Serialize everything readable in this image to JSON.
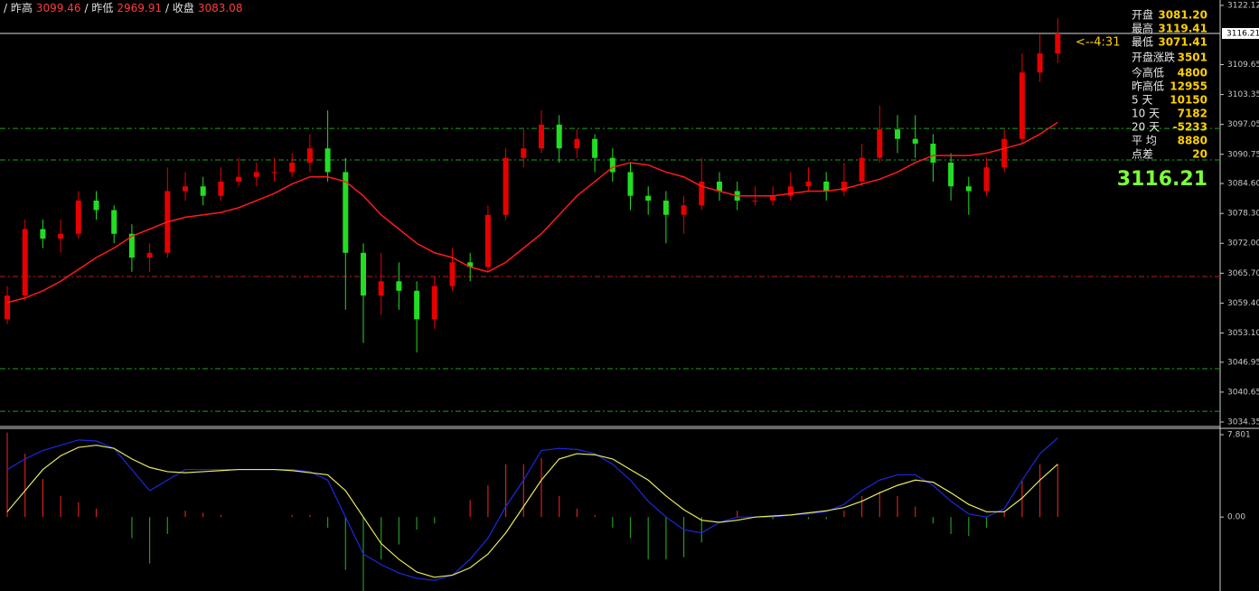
{
  "header": {
    "items": [
      {
        "label": "/ 昨高",
        "value": "3099.46"
      },
      {
        "label": "/ 昨低",
        "value": "2969.91"
      },
      {
        "label": "/ 收盘",
        "value": "3083.08"
      }
    ]
  },
  "info_panel": {
    "items": [
      {
        "label": "开盘",
        "value": "3081.20"
      },
      {
        "label": "最高",
        "value": "3119.41"
      },
      {
        "label": "最低",
        "value": "3071.41"
      },
      {
        "label": "开盘涨跌",
        "value": "3501"
      },
      {
        "label": "今高低",
        "value": "4800"
      },
      {
        "label": "昨高低",
        "value": "12955"
      },
      {
        "label": "5  天",
        "value": "10150"
      },
      {
        "label": "10 天",
        "value": "7182"
      },
      {
        "label": "20 天",
        "value": "-5233"
      },
      {
        "label": "平  均",
        "value": "8880"
      },
      {
        "label": "点差",
        "value": "20"
      }
    ],
    "big_price": "3116.21"
  },
  "chart_data": [
    {
      "type": "candlestick",
      "up_color": "#e60000",
      "down_color": "#22dd22",
      "ylim": [
        3034.35,
        3122.12
      ],
      "yticks": [
        3122.12,
        3109.65,
        3103.35,
        3097.05,
        3090.75,
        {
          "value": 3084.6,
          "label": "3084.60"
        },
        {
          "value": 3078.3,
          "label": "3078.30"
        },
        {
          "value": 3072,
          "label": "3072.00"
        },
        {
          "value": 3065.7,
          "label": "3065.70"
        },
        {
          "value": 3059.4,
          "label": "3059.40"
        },
        {
          "value": 3053.1,
          "label": "3053.10"
        },
        3046.95,
        3040.65,
        3034.35
      ],
      "current": {
        "value": 3116.21,
        "label": "<--4:31"
      },
      "levels": [
        {
          "value": 3096.2,
          "color": "#1e9e1e"
        },
        {
          "value": 3089.56,
          "color": "#1e9e1e"
        },
        {
          "value": 3065.0,
          "color": "#b02020"
        },
        {
          "value": 3045.58,
          "color": "#1e9e1e"
        },
        {
          "value": 3036.62,
          "color": "#1e9e1e"
        }
      ],
      "candles": [
        [
          3056,
          3063,
          3055,
          3061
        ],
        [
          3061,
          3077,
          3060,
          3075
        ],
        [
          3075,
          3077,
          3071,
          3073
        ],
        [
          3073,
          3077,
          3070,
          3074
        ],
        [
          3074,
          3083,
          3073,
          3081
        ],
        [
          3081,
          3083,
          3077,
          3079
        ],
        [
          3079,
          3080,
          3072,
          3074
        ],
        [
          3074,
          3076,
          3066,
          3069
        ],
        [
          3069,
          3072,
          3066,
          3070
        ],
        [
          3070,
          3088,
          3069,
          3083
        ],
        [
          3083,
          3087,
          3081,
          3084
        ],
        [
          3084,
          3086,
          3080,
          3082
        ],
        [
          3082,
          3088,
          3081,
          3085
        ],
        [
          3085,
          3090,
          3084,
          3086
        ],
        [
          3086,
          3089,
          3084,
          3087
        ],
        [
          3087,
          3090,
          3085,
          3087
        ],
        [
          3087,
          3091,
          3086,
          3089
        ],
        [
          3089,
          3095,
          3087,
          3092
        ],
        [
          3092,
          3100,
          3085,
          3087
        ],
        [
          3087,
          3090,
          3058,
          3070
        ],
        [
          3070,
          3072,
          3051,
          3061
        ],
        [
          3061,
          3070,
          3057,
          3064
        ],
        [
          3064,
          3068,
          3058,
          3062
        ],
        [
          3062,
          3064,
          3049,
          3056
        ],
        [
          3056,
          3065,
          3054,
          3063
        ],
        [
          3063,
          3071,
          3062,
          3068
        ],
        [
          3068,
          3070,
          3064,
          3067
        ],
        [
          3067,
          3080,
          3066,
          3078
        ],
        [
          3078,
          3092,
          3077,
          3090
        ],
        [
          3090,
          3096,
          3088,
          3092
        ],
        [
          3092,
          3100,
          3091,
          3097
        ],
        [
          3097,
          3099,
          3089,
          3092
        ],
        [
          3092,
          3096,
          3090,
          3094
        ],
        [
          3094,
          3095,
          3087,
          3090
        ],
        [
          3090,
          3092,
          3085,
          3087
        ],
        [
          3087,
          3089,
          3079,
          3082
        ],
        [
          3082,
          3084,
          3078,
          3081
        ],
        [
          3081,
          3083,
          3072,
          3078
        ],
        [
          3078,
          3082,
          3074,
          3080
        ],
        [
          3080,
          3090,
          3079,
          3085
        ],
        [
          3085,
          3087,
          3081,
          3083
        ],
        [
          3083,
          3085,
          3079,
          3081
        ],
        [
          3081,
          3084,
          3080,
          3081
        ],
        [
          3081,
          3084,
          3080,
          3082
        ],
        [
          3082,
          3087,
          3081,
          3084
        ],
        [
          3084,
          3088,
          3083,
          3085
        ],
        [
          3085,
          3087,
          3081,
          3083
        ],
        [
          3083,
          3089,
          3082,
          3085
        ],
        [
          3085,
          3093,
          3084,
          3090
        ],
        [
          3090,
          3101,
          3089,
          3096
        ],
        [
          3096,
          3099,
          3091,
          3094
        ],
        [
          3094,
          3099,
          3090,
          3093
        ],
        [
          3093,
          3095,
          3085,
          3089
        ],
        [
          3089,
          3091,
          3081,
          3084
        ],
        [
          3084,
          3086,
          3078,
          3083
        ],
        [
          3083,
          3090,
          3082,
          3088
        ],
        [
          3088,
          3096,
          3087,
          3094
        ],
        [
          3094,
          3112,
          3093,
          3108
        ],
        [
          3108,
          3116,
          3106,
          3112
        ],
        [
          3112,
          3119.41,
          3110,
          3116.21
        ]
      ],
      "ma": {
        "color": "#ff1a1a",
        "values": [
          3059.5,
          3060.5,
          3062,
          3064,
          3066.5,
          3069,
          3071,
          3073.5,
          3075,
          3076.5,
          3077.5,
          3078,
          3078.5,
          3079.5,
          3081,
          3082.5,
          3084.5,
          3086,
          3086,
          3085,
          3082,
          3078,
          3075,
          3072,
          3070,
          3069,
          3067,
          3066,
          3068,
          3071,
          3074,
          3078,
          3082,
          3085,
          3088,
          3089,
          3088.5,
          3087,
          3086,
          3084,
          3083,
          3082,
          3082,
          3082,
          3082.5,
          3083,
          3083,
          3083.5,
          3084.5,
          3085.5,
          3087,
          3089,
          3090.5,
          3090.5,
          3090.5,
          3091,
          3092,
          3093,
          3095,
          3097.5
        ]
      }
    },
    {
      "type": "macd",
      "ylim": [
        -7,
        7.801
      ],
      "yticks": [
        7.801,
        {
          "value": 0,
          "label": "0.00"
        }
      ],
      "dif": {
        "color": "#1c28e0",
        "values": [
          4.5,
          5.5,
          6.3,
          6.8,
          7.3,
          7.2,
          6.5,
          4.5,
          2.5,
          3.5,
          4.5,
          4.5,
          4.5,
          4.5,
          4.5,
          4.5,
          4.5,
          4.3,
          3.5,
          0,
          -3.5,
          -4.5,
          -5.3,
          -5.8,
          -6,
          -5.5,
          -4,
          -2,
          1,
          3.5,
          6.3,
          6.5,
          6.4,
          6,
          5,
          3.5,
          1.5,
          0,
          -1.2,
          -1.5,
          -0.5,
          0,
          0,
          0,
          0.2,
          0.3,
          0.5,
          1.2,
          2.5,
          3.5,
          4,
          4,
          3,
          1.5,
          0.3,
          0,
          0.8,
          3.5,
          6,
          7.5
        ]
      },
      "dea": {
        "color": "#e8e860",
        "values": [
          0.5,
          2.5,
          4.5,
          5.8,
          6.6,
          6.8,
          6.5,
          5.5,
          4.7,
          4.3,
          4.2,
          4.3,
          4.4,
          4.5,
          4.5,
          4.5,
          4.4,
          4.2,
          4,
          2.5,
          0,
          -2.5,
          -4,
          -5.2,
          -5.7,
          -5.5,
          -4.8,
          -3.5,
          -1.5,
          1,
          3.5,
          5.5,
          6,
          5.9,
          5.5,
          4.5,
          3.5,
          2,
          0.7,
          -0.3,
          -0.5,
          -0.3,
          0,
          0.1,
          0.2,
          0.4,
          0.6,
          0.9,
          1.5,
          2.3,
          3,
          3.5,
          3.3,
          2.3,
          1.2,
          0.5,
          0.5,
          1.8,
          3.5,
          5
        ]
      },
      "histogram": {
        "up_color": "#d02020",
        "down_color": "#1f9a1f",
        "values": [
          8,
          6,
          3.6,
          2,
          1.4,
          0.8,
          0,
          -2,
          -4.4,
          -1.6,
          0.6,
          0.4,
          0.2,
          0,
          0,
          0,
          0.2,
          0.2,
          -1,
          -5,
          -7,
          -4,
          -2.6,
          -1.2,
          -0.6,
          0,
          1.6,
          3,
          5,
          5,
          5.6,
          2,
          0.8,
          0.2,
          -1,
          -2,
          -4,
          -4,
          -3.8,
          -2.4,
          0,
          0.6,
          0,
          -0.2,
          0,
          -0.2,
          -0.2,
          0.6,
          2,
          2.4,
          2,
          1,
          -0.6,
          -1.6,
          -1.8,
          -1,
          0.6,
          3.4,
          5,
          5
        ]
      }
    }
  ]
}
